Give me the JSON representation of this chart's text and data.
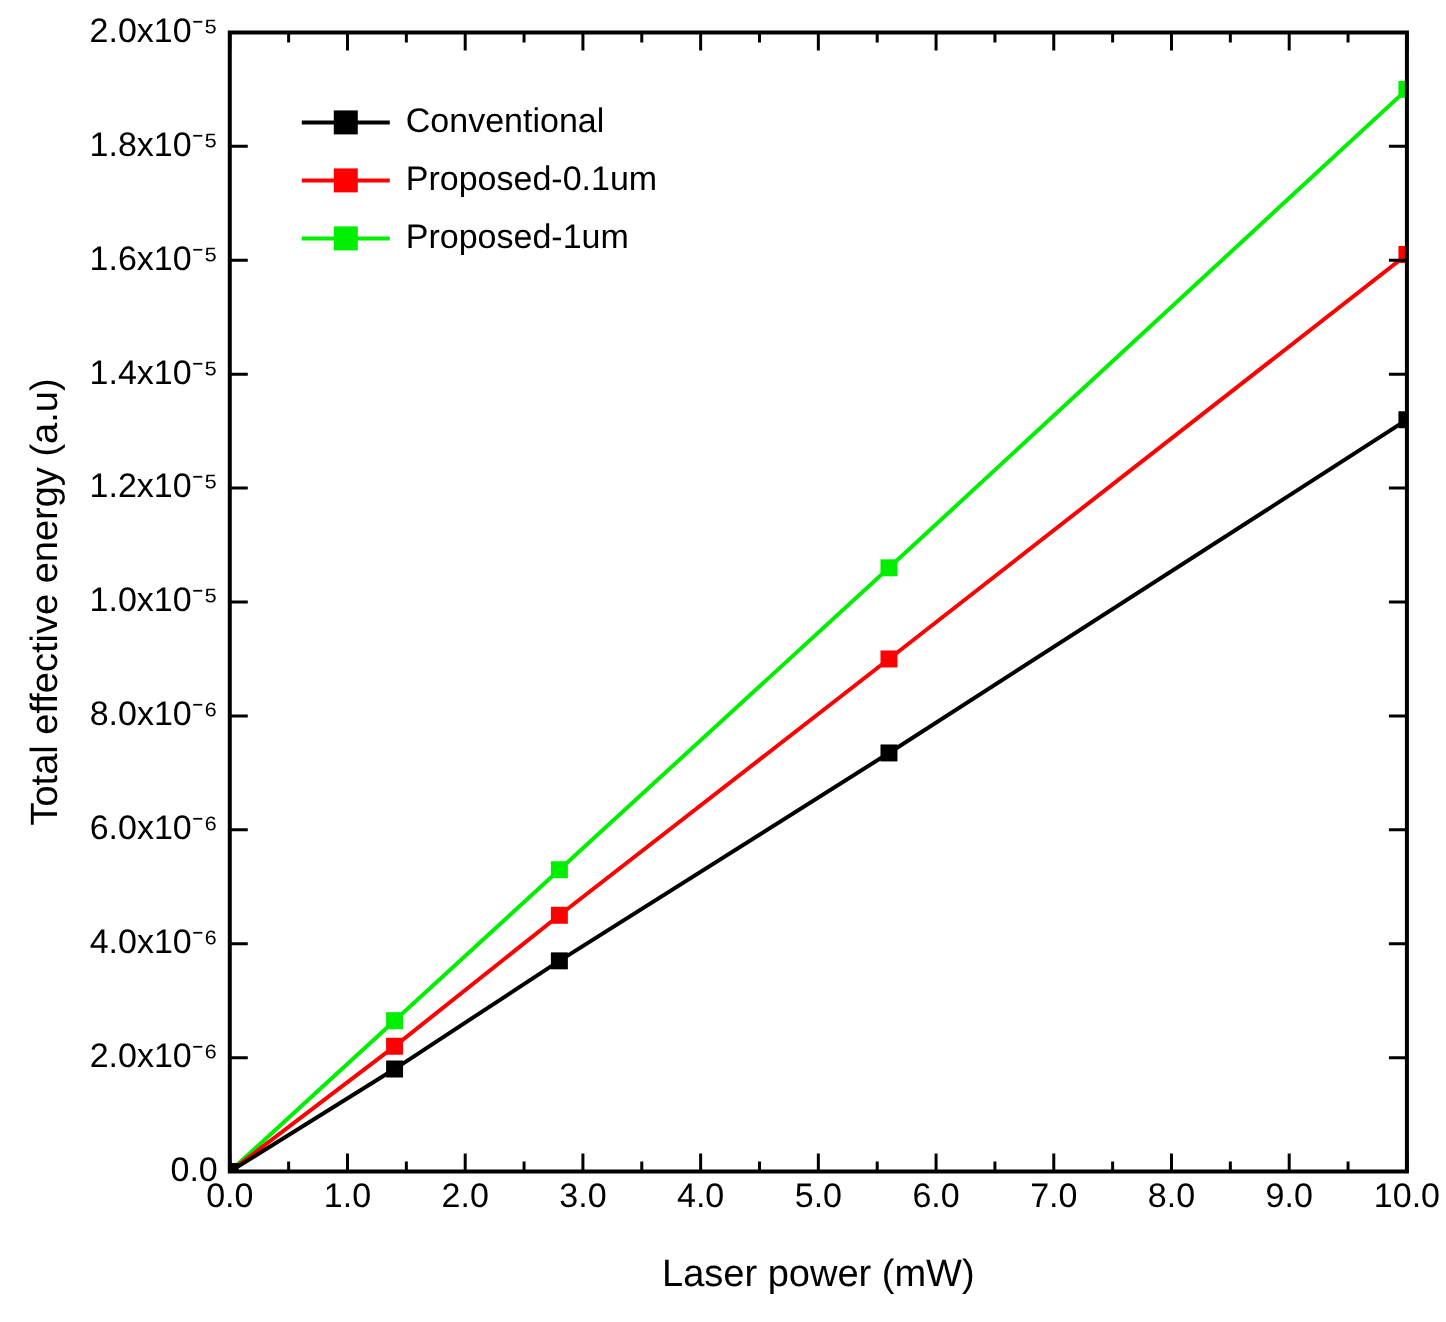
{
  "chart_data": {
    "type": "line",
    "xlabel": "Laser power (mW)",
    "ylabel": "Total effective energy (a.u)",
    "x": [
      0,
      1.4,
      2.8,
      5.6,
      10
    ],
    "series": [
      {
        "name": "Conventional",
        "color": "#000000",
        "values": [
          0,
          1.8e-06,
          3.7e-06,
          7.35e-06,
          1.32e-05
        ]
      },
      {
        "name": "Proposed-0.1um",
        "color": "#ff0000",
        "values": [
          0,
          2.2e-06,
          4.5e-06,
          9e-06,
          1.61e-05
        ]
      },
      {
        "name": "Proposed-1um",
        "color": "#00ee00",
        "values": [
          0,
          2.65e-06,
          5.3e-06,
          1.06e-05,
          1.9e-05
        ]
      }
    ],
    "xlim": [
      0,
      10
    ],
    "xticks": [
      {
        "value": 0,
        "label": "0.0"
      },
      {
        "value": 0.5,
        "label": null
      },
      {
        "value": 1,
        "label": "1.0"
      },
      {
        "value": 1.5,
        "label": null
      },
      {
        "value": 2,
        "label": "2.0"
      },
      {
        "value": 2.5,
        "label": null
      },
      {
        "value": 3,
        "label": "3.0"
      },
      {
        "value": 3.5,
        "label": null
      },
      {
        "value": 4,
        "label": "4.0"
      },
      {
        "value": 4.5,
        "label": null
      },
      {
        "value": 5,
        "label": "5.0"
      },
      {
        "value": 5.5,
        "label": null
      },
      {
        "value": 6,
        "label": "6.0"
      },
      {
        "value": 6.5,
        "label": null
      },
      {
        "value": 7,
        "label": "7.0"
      },
      {
        "value": 7.5,
        "label": null
      },
      {
        "value": 8,
        "label": "8.0"
      },
      {
        "value": 8.5,
        "label": null
      },
      {
        "value": 9,
        "label": "9.0"
      },
      {
        "value": 9.5,
        "label": null
      },
      {
        "value": 10,
        "label": "10.0"
      }
    ],
    "ylim": [
      0,
      2e-05
    ],
    "yticks": [
      {
        "value": 0,
        "label": "0.0"
      },
      {
        "value": 2e-06,
        "label": "2.0x10⁻⁶"
      },
      {
        "value": 4e-06,
        "label": "4.0x10⁻⁶"
      },
      {
        "value": 6e-06,
        "label": "6.0x10⁻⁶"
      },
      {
        "value": 8e-06,
        "label": "8.0x10⁻⁶"
      },
      {
        "value": 1e-05,
        "label": "1.0x10⁻⁵"
      },
      {
        "value": 1.2e-05,
        "label": "1.2x10⁻⁵"
      },
      {
        "value": 1.4e-05,
        "label": "1.4x10⁻⁵"
      },
      {
        "value": 1.6e-05,
        "label": "1.6x10⁻⁵"
      },
      {
        "value": 1.8e-05,
        "label": "1.8x10⁻⁵"
      },
      {
        "value": 2e-05,
        "label": "2.0x10⁻⁵"
      }
    ],
    "legend": "top left",
    "marker": "square",
    "line_style": "solid",
    "grid": false
  }
}
